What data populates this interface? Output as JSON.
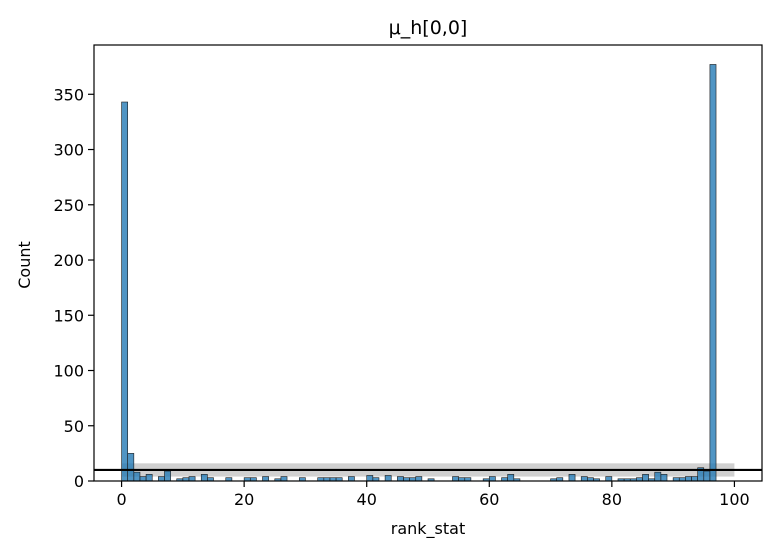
{
  "chart_data": {
    "type": "bar",
    "title": "μ_h[0,0]",
    "xlabel": "rank_stat",
    "ylabel": "Count",
    "xlim": [
      -4.5,
      104.5
    ],
    "ylim": [
      0,
      394.6
    ],
    "xticks": [
      0,
      20,
      40,
      60,
      80,
      100
    ],
    "yticks": [
      0,
      50,
      100,
      150,
      200,
      250,
      300,
      350
    ],
    "bin_width": 1,
    "bins_start": [
      0,
      1,
      2,
      3,
      4,
      5,
      6,
      7,
      8,
      9,
      10,
      11,
      12,
      13,
      14,
      15,
      16,
      17,
      18,
      19,
      20,
      21,
      22,
      23,
      24,
      25,
      26,
      27,
      28,
      29,
      30,
      31,
      32,
      33,
      34,
      35,
      36,
      37,
      38,
      39,
      40,
      41,
      42,
      43,
      44,
      45,
      46,
      47,
      48,
      49,
      50,
      51,
      52,
      53,
      54,
      55,
      56,
      57,
      58,
      59,
      60,
      61,
      62,
      63,
      64,
      65,
      66,
      67,
      68,
      69,
      70,
      71,
      72,
      73,
      74,
      75,
      76,
      77,
      78,
      79,
      80,
      81,
      82,
      83,
      84,
      85,
      86,
      87,
      88,
      89,
      90,
      91,
      92,
      93,
      94,
      95,
      96,
      97,
      98,
      99
    ],
    "values": [
      343,
      25,
      8,
      4,
      6,
      0,
      4,
      9,
      0,
      2,
      3,
      4,
      0,
      6,
      3,
      0,
      0,
      3,
      0,
      0,
      3,
      3,
      0,
      4,
      0,
      2,
      4,
      0,
      0,
      3,
      0,
      0,
      3,
      3,
      3,
      3,
      0,
      4,
      0,
      0,
      5,
      3,
      0,
      5,
      0,
      4,
      3,
      3,
      4,
      0,
      2,
      0,
      0,
      0,
      4,
      3,
      3,
      0,
      0,
      2,
      4,
      0,
      3,
      6,
      2,
      0,
      0,
      0,
      0,
      0,
      2,
      3,
      0,
      6,
      0,
      4,
      3,
      2,
      0,
      4,
      0,
      2,
      2,
      2,
      3,
      6,
      2,
      8,
      6,
      0,
      3,
      3,
      4,
      4,
      12,
      9,
      377,
      0,
      0,
      0
    ],
    "mean_line": 10,
    "band": [
      4,
      16
    ],
    "bar_color": "#1f77b4",
    "band_color": "#c8c8c8",
    "line_color": "#000000",
    "grid": false
  }
}
